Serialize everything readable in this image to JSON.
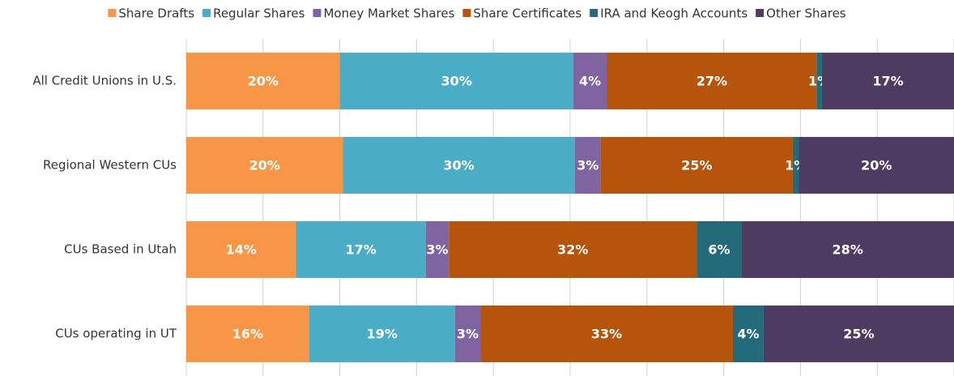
{
  "chart_data": {
    "type": "stacked-bar-horizontal",
    "categories": [
      "All Credit Unions in U.S.",
      "Regional Western CUs",
      "CUs Based in Utah",
      "CUs operating in UT"
    ],
    "series": [
      {
        "name": "Share Drafts",
        "color": "#f79646",
        "values": [
          20.0,
          20.4,
          14.3,
          16.0
        ],
        "value_labels": [
          "20%",
          "20%",
          "14%",
          "16%"
        ]
      },
      {
        "name": "Regular Shares",
        "color": "#4bacc6",
        "values": [
          30.4,
          30.2,
          16.9,
          19.0
        ],
        "value_labels": [
          "30%",
          "30%",
          "17%",
          "19%"
        ]
      },
      {
        "name": "Money Market Shares",
        "color": "#8064a2",
        "values": [
          4.4,
          3.4,
          3.0,
          3.3
        ],
        "value_labels": [
          "4%",
          "3%",
          "3%",
          "3%"
        ]
      },
      {
        "name": "Share Certificates",
        "color": "#b5540a",
        "values": [
          27.3,
          25.0,
          32.3,
          32.9
        ],
        "value_labels": [
          "27%",
          "25%",
          "32%",
          "33%"
        ]
      },
      {
        "name": "IRA and Keogh Accounts",
        "color": "#236b7a",
        "values": [
          0.7,
          0.8,
          5.8,
          4.0
        ],
        "value_labels": [
          "1%",
          "1%",
          "6%",
          "4%"
        ]
      },
      {
        "name": "Other Shares",
        "color": "#4e3b62",
        "values": [
          17.2,
          20.2,
          27.7,
          24.8
        ],
        "value_labels": [
          "17%",
          "20%",
          "28%",
          "25%"
        ]
      }
    ],
    "xlim": [
      0,
      100
    ],
    "xticks": [
      0,
      10,
      20,
      30,
      40,
      50,
      60,
      70,
      80,
      90,
      100
    ],
    "grid": true,
    "legend": "top"
  }
}
